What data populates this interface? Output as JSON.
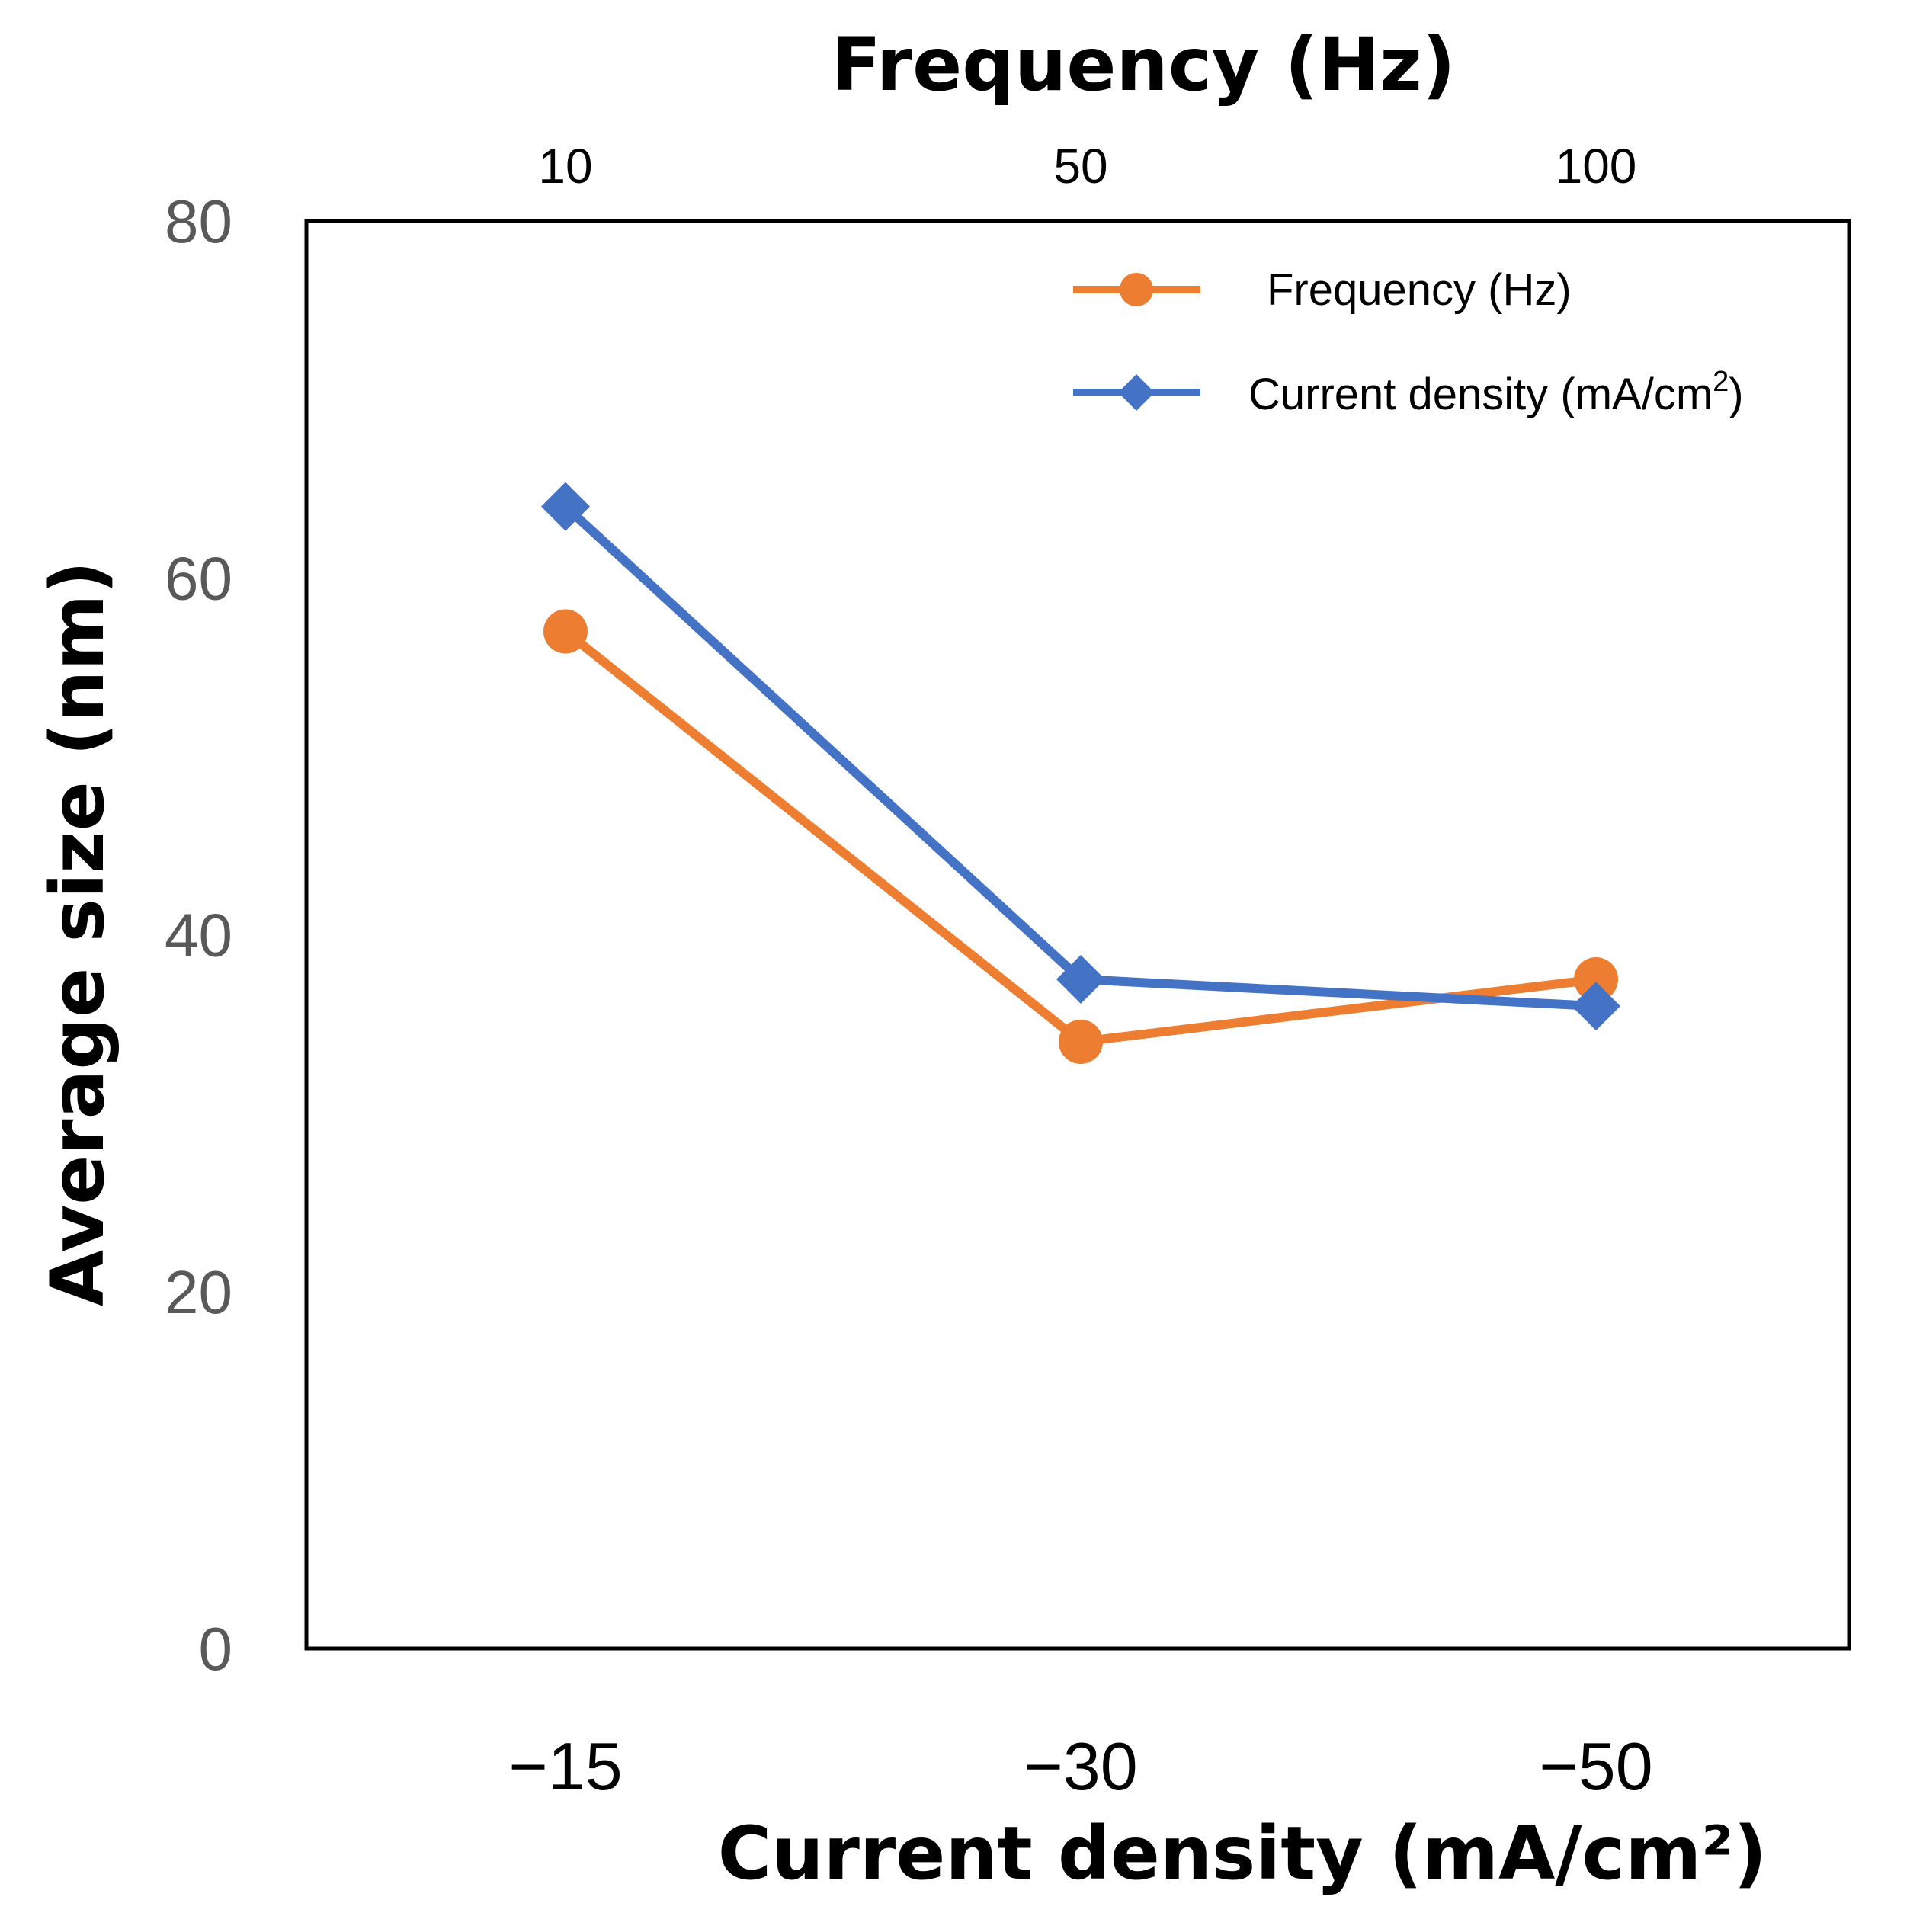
{
  "chart_data": {
    "type": "line",
    "title": "",
    "top_axis": {
      "label": "Frequency (Hz)",
      "tick_labels": [
        "10",
        "50",
        "100"
      ]
    },
    "bottom_axis": {
      "label": "Current density (mA/cm²)",
      "tick_labels": [
        "−15",
        "−30",
        "−50"
      ]
    },
    "ylabel": "Average size (nm)",
    "ylim": [
      0,
      80
    ],
    "yticks": [
      0,
      20,
      40,
      60,
      80
    ],
    "grid": false,
    "legend_position": "top-right",
    "series": [
      {
        "name": "Frequency (Hz)",
        "legend_label": "Frequency (Hz)",
        "legend_superscript": "",
        "legend_suffix": "",
        "axis": "top",
        "marker": "circle",
        "color": "#ED7D31",
        "values": [
          57,
          34,
          37.5
        ]
      },
      {
        "name": "Current density (mA/cm2)",
        "legend_label": "Current density (mA/cm",
        "legend_superscript": "2",
        "legend_suffix": ")",
        "axis": "bottom",
        "marker": "diamond",
        "color": "#4472C4",
        "values": [
          64,
          37.5,
          36
        ]
      }
    ]
  }
}
